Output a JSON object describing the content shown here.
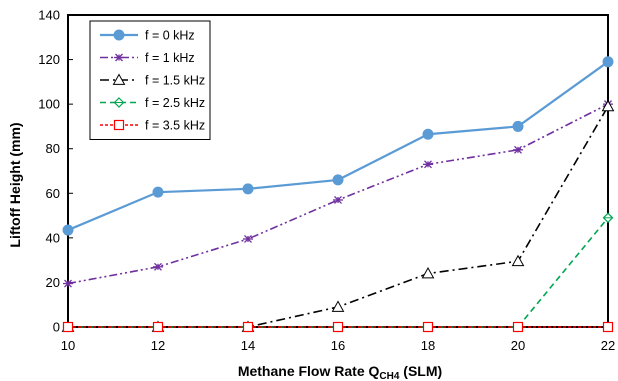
{
  "chart_data": {
    "type": "line",
    "title": "",
    "xlabel": "Methane Flow Rate Q",
    "xlabel_sub": "CH4",
    "xlabel_suffix": " (SLM)",
    "ylabel": "Liftoff Height (mm)",
    "xlim": [
      10,
      22
    ],
    "ylim": [
      0,
      140
    ],
    "x_ticks": [
      10,
      12,
      14,
      16,
      18,
      20,
      22
    ],
    "y_ticks": [
      0,
      20,
      40,
      60,
      80,
      100,
      120,
      140
    ],
    "grid": false,
    "legend_position": "top-left",
    "x": [
      10,
      12,
      14,
      16,
      18,
      20,
      22
    ],
    "series": [
      {
        "name": "f = 0 kHz",
        "values": [
          43.5,
          60.5,
          62,
          66,
          86.5,
          90,
          119
        ],
        "color": "#5b9bd5",
        "marker": "circle",
        "dash": "solid"
      },
      {
        "name": "f = 1 kHz",
        "values": [
          19.5,
          27,
          39.5,
          57,
          73,
          79.5,
          100
        ],
        "color": "#7030a0",
        "marker": "asterisk",
        "dash": "dashdotdot"
      },
      {
        "name": "f = 1.5 kHz",
        "values": [
          0,
          0,
          0,
          9,
          24,
          29.5,
          99
        ],
        "color": "#000000",
        "marker": "triangle",
        "dash": "dashdot"
      },
      {
        "name": "f = 2.5 kHz",
        "values": [
          0,
          0,
          0,
          0,
          0,
          0,
          49
        ],
        "color": "#00a651",
        "marker": "diamond",
        "dash": "dashed"
      },
      {
        "name": "f = 3.5 kHz",
        "values": [
          0,
          0,
          0,
          0,
          0,
          0,
          0
        ],
        "color": "#ff0000",
        "marker": "square",
        "dash": "dotted"
      }
    ]
  }
}
